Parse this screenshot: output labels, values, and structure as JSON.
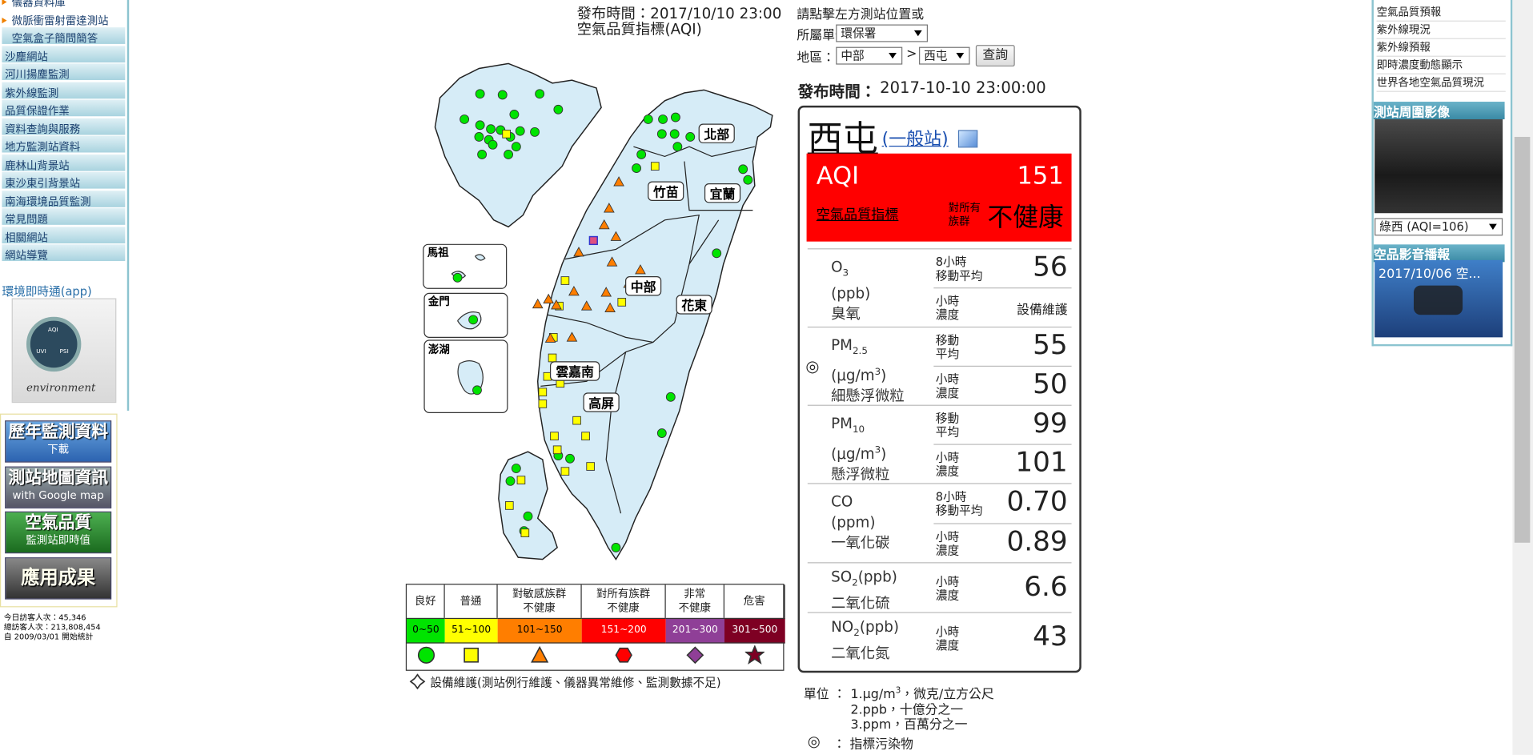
{
  "left_sidebar": {
    "menu": [
      "儀器資料庫",
      "微脈衝雷射雷達測站",
      "空氣盒子簡問簡答",
      "沙塵網站",
      "河川揚塵監測",
      "紫外線監測",
      "品質保證作業",
      "資料查詢與服務",
      "地方監測站資料",
      "鹿林山背景站",
      "東沙東引背景站",
      "南海環境品質監測",
      "常見問題",
      "相關網站",
      "網站導覽"
    ],
    "app": {
      "title": "環境即時通(app)",
      "gauge": [
        "AQI",
        "UVI",
        "PSI"
      ],
      "brand": "environment"
    },
    "banners": [
      {
        "title": "歷年監測資料",
        "subtitle": "下載"
      },
      {
        "title": "測站地圖資訊",
        "subtitle": "with Google map"
      },
      {
        "title": "空氣品質",
        "subtitle": "監測站即時值"
      },
      {
        "title": "應用成果"
      }
    ],
    "visitors": [
      "今日訪客人次：45,346",
      "總訪客人次：213,808,454",
      "自 2009/03/01 開始統計"
    ]
  },
  "header": {
    "publish_time": "發布時間：2017/10/10 23:00",
    "subtitle": "空氣品質指標(AQI)"
  },
  "map": {
    "regions": [
      "北部",
      "竹苗",
      "宜蘭",
      "中部",
      "花東",
      "雲嘉南",
      "高屏"
    ],
    "islands": [
      "馬祖",
      "金門",
      "澎湖"
    ]
  },
  "legend": {
    "levels": [
      {
        "label": [
          "良好"
        ],
        "range": "0~50",
        "color": "#00e400"
      },
      {
        "label": [
          "普通"
        ],
        "range": "51~100",
        "color": "#ffff00"
      },
      {
        "label": [
          "對敏感族群",
          "不健康"
        ],
        "range": "101~150",
        "color": "#ff7e00"
      },
      {
        "label": [
          "對所有族群",
          "不健康"
        ],
        "range": "151~200",
        "color": "#ff0000"
      },
      {
        "label": [
          "非常",
          "不健康"
        ],
        "range": "201~300",
        "color": "#8f3f97"
      },
      {
        "label": [
          "危害"
        ],
        "range": "301~500",
        "color": "#7e0023"
      }
    ],
    "maintenance_note": "設備維護(測站例行維護、儀器異常維修、監測數據不足)"
  },
  "query": {
    "prompt": "請點擊左方測站位置或",
    "agency_label": "所屬單位：",
    "agency": "環保署",
    "area_label": "地區：",
    "area": "中部",
    "separator": ">",
    "site": "西屯",
    "button": "查詢"
  },
  "station": {
    "publish_label": "發布時間：",
    "publish_time": "2017-10-10 23:00:00",
    "name": "西屯",
    "kind": "(一般站)",
    "aqi_label": "AQI",
    "aqi": "151",
    "aqi_name": "空氣品質指標",
    "status_group": [
      "對所有",
      "族群"
    ],
    "status": "不健康",
    "pollutants": [
      {
        "name": "O",
        "sub": "3",
        "unit": "(ppb)",
        "zh": "臭氧",
        "rows": [
          {
            "label": [
              "8小時",
              "移動平均"
            ],
            "value": "56"
          },
          {
            "label": [
              "小時",
              "濃度"
            ],
            "value": "設備維護"
          }
        ]
      },
      {
        "index": "◎",
        "name": "PM",
        "sub": "2.5",
        "unit": "(μg/m",
        "unit_sup": "3",
        "unit_post": ")",
        "zh": "細懸浮微粒",
        "rows": [
          {
            "label": [
              "移動",
              "平均"
            ],
            "value": "55"
          },
          {
            "label": [
              "小時",
              "濃度"
            ],
            "value": "50"
          }
        ]
      },
      {
        "name": "PM",
        "sub": "10",
        "unit": "(μg/m",
        "unit_sup": "3",
        "unit_post": ")",
        "zh": "懸浮微粒",
        "rows": [
          {
            "label": [
              "移動",
              "平均"
            ],
            "value": "99"
          },
          {
            "label": [
              "小時",
              "濃度"
            ],
            "value": "101"
          }
        ]
      },
      {
        "name": "CO",
        "unit": "(ppm)",
        "zh": "一氧化碳",
        "rows": [
          {
            "label": [
              "8小時",
              "移動平均"
            ],
            "value": "0.70"
          },
          {
            "label": [
              "小時",
              "濃度"
            ],
            "value": "0.89"
          }
        ]
      },
      {
        "name": "SO",
        "sub": "2",
        "unit": "(ppb)",
        "zh": "二氧化硫",
        "rows": [
          {
            "label": [
              "小時",
              "濃度"
            ],
            "value": "6.6"
          }
        ]
      },
      {
        "name": "NO",
        "sub": "2",
        "unit": "(ppb)",
        "zh": "二氧化氮",
        "rows": [
          {
            "label": [
              "小時",
              "濃度"
            ],
            "value": "43"
          }
        ]
      }
    ]
  },
  "notes": {
    "unit_label": "單位 ：",
    "items": [
      {
        "text": "1.μg/m",
        "sup": "3",
        "post": "，微克/立方公尺"
      },
      {
        "text": "2.ppb，十億分之一"
      },
      {
        "text": "3.ppm，百萬分之一"
      }
    ],
    "index_symbol": "◎",
    "index_label": "：  指標污染物"
  },
  "right_sidebar": {
    "links": [
      "空氣品質預報",
      "紫外線現況",
      "紫外線預報",
      "即時濃度動態顯示",
      "世界各地空氣品質現況"
    ],
    "camera_title": "測站周圍影像",
    "camera_select": "綠西 (AQI=106)",
    "video_title": "空品影音播報",
    "video_caption": "2017/10/06 空..."
  }
}
